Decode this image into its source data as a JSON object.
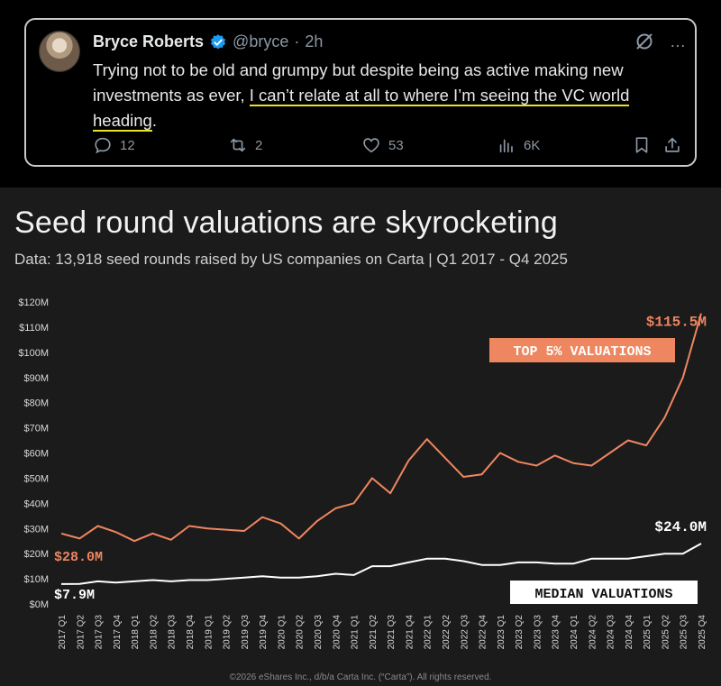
{
  "tweet": {
    "name": "Bryce Roberts",
    "handle": "@bryce",
    "sep": "·",
    "time": "2h",
    "text_before": "Trying not to be old and grumpy but despite being as active making new investments as ever, ",
    "text_highlight": "I can’t relate at all to where I’m seeing the VC world heading",
    "text_after": ".",
    "replies": "12",
    "reposts": "2",
    "likes": "53",
    "views": "6K",
    "more_icon": "…",
    "highlight_color": "#e8e22c",
    "verified_color": "#1d9bf0"
  },
  "chart": {
    "title": "Seed round valuations are skyrocketing",
    "subtitle": "Data: 13,918 seed rounds raised by US companies on Carta | Q1 2017 - Q4 2025",
    "footer": "©2026 eShares Inc., d/b/a Carta Inc. (“Carta”). All rights reserved."
  },
  "chart_data": {
    "type": "line",
    "title": "Seed round valuations are skyrocketing",
    "xlabel": "",
    "ylabel": "",
    "ylim": [
      0,
      120
    ],
    "y_ticks": [
      "$0M",
      "$10M",
      "$20M",
      "$30M",
      "$40M",
      "$50M",
      "$60M",
      "$70M",
      "$80M",
      "$90M",
      "$100M",
      "$110M",
      "$120M"
    ],
    "x": [
      "2017 Q1",
      "2017 Q2",
      "2017 Q3",
      "2017 Q4",
      "2018 Q1",
      "2018 Q2",
      "2018 Q3",
      "2018 Q4",
      "2019 Q1",
      "2019 Q2",
      "2019 Q3",
      "2019 Q4",
      "2020 Q1",
      "2020 Q2",
      "2020 Q3",
      "2020 Q4",
      "2021 Q1",
      "2021 Q2",
      "2021 Q3",
      "2021 Q4",
      "2022 Q1",
      "2022 Q2",
      "2022 Q3",
      "2022 Q4",
      "2023 Q1",
      "2023 Q2",
      "2023 Q3",
      "2023 Q4",
      "2024 Q1",
      "2024 Q2",
      "2024 Q3",
      "2024 Q4",
      "2025 Q1",
      "2025 Q2",
      "2025 Q3",
      "2025 Q4"
    ],
    "series": [
      {
        "name": "TOP 5% VALUATIONS",
        "color": "#ee8660",
        "start_label": "$28.0M",
        "end_label": "$115.5M",
        "values": [
          28.0,
          26.0,
          31.0,
          28.5,
          25.0,
          28.0,
          25.5,
          31.0,
          30.0,
          29.5,
          29.0,
          34.5,
          32.0,
          26.0,
          33.0,
          38.0,
          40.0,
          50.0,
          44.0,
          57.0,
          65.5,
          58.0,
          50.5,
          51.5,
          60.0,
          56.5,
          55.0,
          59.0,
          56.0,
          55.0,
          60.0,
          65.0,
          63.0,
          74.0,
          90.0,
          115.5
        ]
      },
      {
        "name": "MEDIAN VALUATIONS",
        "color": "#ffffff",
        "start_label": "$7.9M",
        "end_label": "$24.0M",
        "values": [
          7.9,
          8.0,
          9.0,
          8.5,
          9.0,
          9.5,
          9.0,
          9.5,
          9.5,
          10.0,
          10.5,
          11.0,
          10.5,
          10.5,
          11.0,
          12.0,
          11.5,
          15.0,
          15.0,
          16.5,
          18.0,
          18.0,
          17.0,
          15.5,
          15.5,
          16.5,
          16.5,
          16.0,
          16.0,
          18.0,
          18.0,
          18.0,
          19.0,
          20.0,
          20.0,
          24.0
        ]
      }
    ],
    "grid": false,
    "legend": "inline labels"
  }
}
